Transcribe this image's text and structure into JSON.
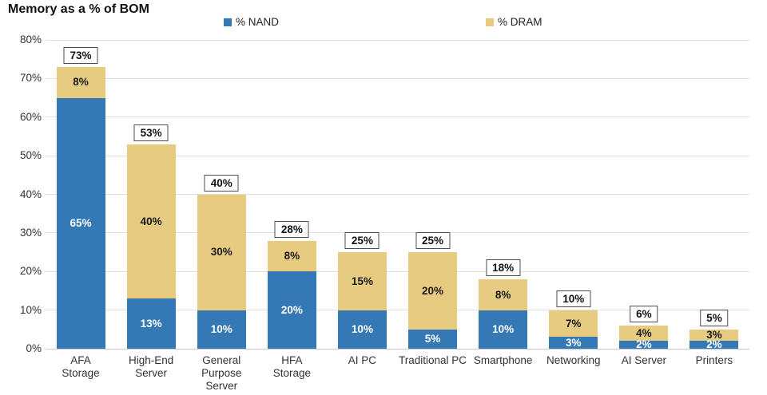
{
  "title": "Memory as a % of BOM",
  "chart_data": {
    "type": "bar",
    "stacked": true,
    "title": "Memory as a % of BOM",
    "categories": [
      "AFA\nStorage",
      "High-End\nServer",
      "General\nPurpose\nServer",
      "HFA\nStorage",
      "AI PC",
      "Traditional PC",
      "Smartphone",
      "Networking",
      "AI Server",
      "Printers"
    ],
    "series": [
      {
        "name": "% NAND",
        "color": "#3478b6",
        "label_color": "#ffffff",
        "values": [
          65,
          13,
          10,
          20,
          10,
          5,
          10,
          3,
          2,
          2
        ]
      },
      {
        "name": "% DRAM",
        "color": "#e7cb80",
        "label_color": "#1a1a1a",
        "values": [
          8,
          40,
          30,
          8,
          15,
          20,
          8,
          7,
          4,
          3
        ]
      }
    ],
    "totals": [
      73,
      53,
      40,
      28,
      25,
      25,
      18,
      10,
      6,
      5
    ],
    "value_suffix": "%",
    "ylim": [
      0,
      80
    ],
    "yticks": [
      0,
      10,
      20,
      30,
      40,
      50,
      60,
      70,
      80
    ],
    "ytick_suffix": "%",
    "grid": true,
    "legend_position": "top"
  }
}
